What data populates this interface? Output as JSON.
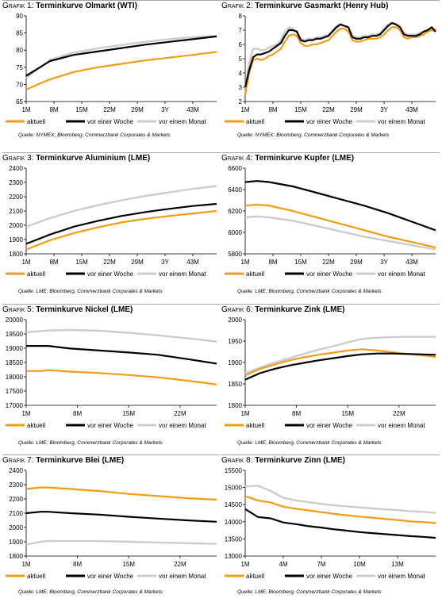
{
  "colors": {
    "aktuell": "#f39c12",
    "woche": "#000000",
    "monat": "#cccccc"
  },
  "chart_data": [
    {
      "type": "line",
      "label": "Grafik 1:",
      "title": "Terminkurve Olmarkt (WTI)",
      "source": "Quelle: NYMEX; Bloomberg, Commerzbank Corporates & Markets",
      "x": [
        0,
        6,
        12,
        18,
        24,
        30,
        36,
        42,
        48
      ],
      "xticks": [
        {
          "v": 0,
          "label": "1M"
        },
        {
          "v": 7,
          "label": "8M"
        },
        {
          "v": 14,
          "label": "15M"
        },
        {
          "v": 21,
          "label": "22M"
        },
        {
          "v": 28,
          "label": "29M"
        },
        {
          "v": 35,
          "label": "3Y"
        },
        {
          "v": 42,
          "label": "43M"
        }
      ],
      "xlim": [
        0,
        48
      ],
      "ylim": [
        65,
        90
      ],
      "yticks": [
        65,
        70,
        75,
        80,
        85,
        90
      ],
      "series": [
        {
          "name": "aktuell",
          "values": [
            68.5,
            71.5,
            73.6,
            75.0,
            76.0,
            77.0,
            77.8,
            78.6,
            79.5
          ]
        },
        {
          "name": "vor einer Woche",
          "values": [
            72.5,
            76.8,
            78.6,
            79.6,
            80.6,
            81.6,
            82.4,
            83.2,
            84.0
          ]
        },
        {
          "name": "vor einem Monat",
          "values": [
            71.8,
            77.2,
            79.3,
            80.5,
            81.5,
            82.4,
            83.2,
            83.8,
            84.2
          ]
        }
      ]
    },
    {
      "type": "line",
      "label": "Grafik 2:",
      "title": "Terminkurve Gasmarkt (Henry Hub)",
      "source": "Quelle: NYMEX; Bloomberg, Commerzbank Corporates & Markets",
      "x": [
        0,
        1,
        2,
        3,
        4,
        5,
        6,
        7,
        8,
        9,
        10,
        11,
        12,
        13,
        14,
        15,
        16,
        17,
        18,
        19,
        20,
        21,
        22,
        23,
        24,
        25,
        26,
        27,
        28,
        29,
        30,
        31,
        32,
        33,
        34,
        35,
        36,
        37,
        38,
        39,
        40,
        41,
        42,
        43,
        44,
        45,
        46,
        47,
        48
      ],
      "xticks": [
        {
          "v": 0,
          "label": "1M"
        },
        {
          "v": 7,
          "label": "8M"
        },
        {
          "v": 14,
          "label": "15M"
        },
        {
          "v": 21,
          "label": "22M"
        },
        {
          "v": 28,
          "label": "29M"
        },
        {
          "v": 35,
          "label": "3Y"
        },
        {
          "v": 42,
          "label": "43M"
        }
      ],
      "xlim": [
        0,
        48
      ],
      "ylim": [
        2,
        8
      ],
      "yticks": [
        2,
        3,
        4,
        5,
        6,
        7,
        8
      ],
      "series": [
        {
          "name": "aktuell",
          "values": [
            2.5,
            4.0,
            4.9,
            5.0,
            4.9,
            5.0,
            5.2,
            5.3,
            5.5,
            5.7,
            6.2,
            6.6,
            6.7,
            6.6,
            6.1,
            5.9,
            5.9,
            6.0,
            6.0,
            6.1,
            6.2,
            6.3,
            6.6,
            6.9,
            7.1,
            7.1,
            6.9,
            6.3,
            6.2,
            6.2,
            6.3,
            6.4,
            6.4,
            6.4,
            6.5,
            6.7,
            7.0,
            7.2,
            7.2,
            7.0,
            6.5,
            6.4,
            6.5,
            6.5,
            6.6,
            6.7,
            6.9,
            7.0,
            6.9
          ]
        },
        {
          "name": "vor einer Woche",
          "values": [
            3.0,
            4.2,
            5.1,
            5.3,
            5.3,
            5.4,
            5.5,
            5.7,
            5.9,
            6.1,
            6.6,
            7.0,
            7.0,
            6.9,
            6.3,
            6.2,
            6.3,
            6.3,
            6.4,
            6.4,
            6.5,
            6.6,
            6.9,
            7.2,
            7.4,
            7.3,
            7.2,
            6.5,
            6.4,
            6.4,
            6.5,
            6.5,
            6.6,
            6.6,
            6.7,
            7.0,
            7.3,
            7.5,
            7.4,
            7.2,
            6.7,
            6.6,
            6.6,
            6.6,
            6.7,
            6.9,
            7.0,
            7.2,
            6.9
          ]
        },
        {
          "name": "vor einem Monat",
          "values": [
            2.9,
            4.7,
            5.7,
            5.7,
            5.6,
            5.6,
            5.8,
            5.9,
            6.0,
            6.3,
            6.9,
            7.2,
            7.1,
            6.9,
            6.4,
            6.3,
            6.4,
            6.4,
            6.5,
            6.5,
            6.6,
            6.7,
            7.0,
            7.3,
            7.4,
            7.3,
            7.2,
            6.6,
            6.5,
            6.5,
            6.6,
            6.6,
            6.7,
            6.7,
            6.8,
            7.1,
            7.4,
            7.5,
            7.4,
            7.3,
            6.8,
            6.7,
            6.7,
            6.7,
            6.8,
            6.9,
            7.0,
            7.1,
            7.0
          ]
        }
      ]
    },
    {
      "type": "line",
      "label": "Grafik 3:",
      "title": "Terminkurve Aluminium (LME)",
      "source": "Quelle: LME; Bloomberg, Commerzbank Corporates & Markets",
      "x": [
        0,
        6,
        12,
        18,
        24,
        30,
        36,
        42,
        48
      ],
      "xticks": [
        {
          "v": 0,
          "label": "1M"
        },
        {
          "v": 7,
          "label": "8M"
        },
        {
          "v": 14,
          "label": "15M"
        },
        {
          "v": 21,
          "label": "22M"
        },
        {
          "v": 28,
          "label": "29M"
        },
        {
          "v": 35,
          "label": "3Y"
        },
        {
          "v": 42,
          "label": "43M"
        }
      ],
      "xlim": [
        0,
        48
      ],
      "ylim": [
        1800,
        2400
      ],
      "yticks": [
        1800,
        1900,
        2000,
        2100,
        2200,
        2300,
        2400
      ],
      "series": [
        {
          "name": "aktuell",
          "values": [
            1830,
            1895,
            1945,
            1985,
            2020,
            2045,
            2065,
            2083,
            2100
          ]
        },
        {
          "name": "vor einer Woche",
          "values": [
            1870,
            1935,
            1990,
            2030,
            2065,
            2092,
            2115,
            2135,
            2150
          ]
        },
        {
          "name": "vor einem Monat",
          "values": [
            1990,
            2050,
            2100,
            2140,
            2175,
            2205,
            2230,
            2255,
            2275
          ]
        }
      ]
    },
    {
      "type": "line",
      "label": "Grafik 4:",
      "title": "Terminkurve Kupfer (LME)",
      "source": "Quelle: LME; Bloomberg, Commerzbank Corporates & Markets",
      "x": [
        0,
        3,
        6,
        12,
        18,
        24,
        30,
        36,
        42,
        48
      ],
      "xticks": [
        {
          "v": 0,
          "label": "1M"
        },
        {
          "v": 7,
          "label": "8M"
        },
        {
          "v": 14,
          "label": "15M"
        },
        {
          "v": 21,
          "label": "22M"
        },
        {
          "v": 28,
          "label": "29M"
        },
        {
          "v": 35,
          "label": "3Y"
        },
        {
          "v": 42,
          "label": "43M"
        }
      ],
      "xlim": [
        0,
        48
      ],
      "ylim": [
        5800,
        6600
      ],
      "yticks": [
        5800,
        6000,
        6200,
        6400,
        6600
      ],
      "series": [
        {
          "name": "aktuell",
          "values": [
            6250,
            6260,
            6250,
            6200,
            6140,
            6080,
            6020,
            5960,
            5910,
            5860
          ]
        },
        {
          "name": "vor einer Woche",
          "values": [
            6470,
            6480,
            6470,
            6430,
            6370,
            6310,
            6250,
            6180,
            6100,
            6020
          ]
        },
        {
          "name": "vor einem Monat",
          "values": [
            6140,
            6150,
            6140,
            6110,
            6060,
            6010,
            5960,
            5920,
            5880,
            5840
          ]
        }
      ]
    },
    {
      "type": "line",
      "label": "Grafik 5:",
      "title": "Terminkurve Nickel (LME)",
      "source": "Quelle: LME; Bloomberg, Commerzbank Corporates & Markets",
      "x": [
        0,
        2,
        3,
        6,
        10,
        14,
        18,
        22,
        26
      ],
      "xticks": [
        {
          "v": 0,
          "label": "1M"
        },
        {
          "v": 7,
          "label": "8M"
        },
        {
          "v": 14,
          "label": "15M"
        },
        {
          "v": 21,
          "label": "22M"
        }
      ],
      "xlim": [
        0,
        26
      ],
      "ylim": [
        17000,
        20000
      ],
      "yticks": [
        17000,
        17500,
        18000,
        18500,
        19000,
        19500,
        20000
      ],
      "series": [
        {
          "name": "aktuell",
          "values": [
            18200,
            18200,
            18230,
            18180,
            18130,
            18060,
            17980,
            17860,
            17730
          ]
        },
        {
          "name": "vor einer Woche",
          "values": [
            19080,
            19080,
            19080,
            18990,
            18920,
            18850,
            18770,
            18620,
            18460
          ]
        },
        {
          "name": "vor einem Monat",
          "values": [
            19560,
            19600,
            19620,
            19640,
            19610,
            19540,
            19450,
            19350,
            19230
          ]
        }
      ]
    },
    {
      "type": "line",
      "label": "Grafik 6:",
      "title": "Terminkurve Zink (LME)",
      "source": "Quelle: LME; Bloomberg, Commerzbank Corporates & Markets",
      "x": [
        0,
        2,
        4,
        6,
        8,
        10,
        12,
        14,
        16,
        18,
        20,
        22,
        24,
        26
      ],
      "xticks": [
        {
          "v": 0,
          "label": "1M"
        },
        {
          "v": 7,
          "label": "8M"
        },
        {
          "v": 14,
          "label": "15M"
        },
        {
          "v": 21,
          "label": "22M"
        }
      ],
      "xlim": [
        0,
        26
      ],
      "ylim": [
        1800,
        2000
      ],
      "yticks": [
        1800,
        1850,
        1900,
        1950,
        2000
      ],
      "series": [
        {
          "name": "aktuell",
          "values": [
            1870,
            1885,
            1895,
            1905,
            1912,
            1918,
            1923,
            1928,
            1931,
            1928,
            1924,
            1920,
            1917,
            1913
          ]
        },
        {
          "name": "vor einer Woche",
          "values": [
            1860,
            1875,
            1885,
            1893,
            1899,
            1905,
            1910,
            1915,
            1919,
            1921,
            1921,
            1920,
            1919,
            1918
          ]
        },
        {
          "name": "vor einem Monat",
          "values": [
            1875,
            1888,
            1900,
            1910,
            1920,
            1930,
            1938,
            1947,
            1955,
            1958,
            1959,
            1960,
            1960,
            1960
          ]
        }
      ]
    },
    {
      "type": "line",
      "label": "Grafik 7:",
      "title": "Terminkurve Blei (LME)",
      "source": "Quelle: LME; Bloomberg, Commerzbank Corporates & Markets",
      "x": [
        0,
        2,
        3,
        6,
        10,
        14,
        18,
        22,
        26
      ],
      "xticks": [
        {
          "v": 0,
          "label": "1M"
        },
        {
          "v": 7,
          "label": "8M"
        },
        {
          "v": 14,
          "label": "15M"
        },
        {
          "v": 21,
          "label": "22M"
        }
      ],
      "xlim": [
        0,
        26
      ],
      "ylim": [
        1800,
        2400
      ],
      "yticks": [
        1800,
        1900,
        2000,
        2100,
        2200,
        2300,
        2400
      ],
      "series": [
        {
          "name": "aktuell",
          "values": [
            2270,
            2280,
            2280,
            2270,
            2255,
            2235,
            2220,
            2205,
            2195
          ]
        },
        {
          "name": "vor einer Woche",
          "values": [
            2100,
            2110,
            2110,
            2100,
            2090,
            2075,
            2062,
            2050,
            2040
          ]
        },
        {
          "name": "vor einem Monat",
          "values": [
            1880,
            1900,
            1905,
            1905,
            1905,
            1900,
            1895,
            1890,
            1885
          ]
        }
      ]
    },
    {
      "type": "line",
      "label": "Grafik 8:",
      "title": "Terminkurve Zinn (LME)",
      "source": "Quelle: LME; Bloomberg, Commerzbank Corporates & Markets",
      "x": [
        0,
        1,
        2,
        3,
        4,
        5,
        6,
        7,
        8,
        9,
        10,
        11,
        12,
        13,
        14,
        15
      ],
      "xticks": [
        {
          "v": 0,
          "label": "1M"
        },
        {
          "v": 3,
          "label": "4M"
        },
        {
          "v": 6,
          "label": "7M"
        },
        {
          "v": 9,
          "label": "10M"
        },
        {
          "v": 12,
          "label": "13M"
        }
      ],
      "xlim": [
        0,
        15
      ],
      "ylim": [
        13000,
        15500
      ],
      "yticks": [
        13000,
        13500,
        14000,
        14500,
        15000,
        15500
      ],
      "series": [
        {
          "name": "aktuell",
          "values": [
            14750,
            14620,
            14560,
            14440,
            14380,
            14330,
            14280,
            14230,
            14190,
            14150,
            14120,
            14080,
            14050,
            14010,
            13990,
            13960
          ]
        },
        {
          "name": "vor einer Woche",
          "values": [
            14370,
            14140,
            14100,
            13980,
            13930,
            13870,
            13830,
            13780,
            13740,
            13700,
            13670,
            13640,
            13610,
            13580,
            13560,
            13530
          ]
        },
        {
          "name": "vor einem Monat",
          "values": [
            15030,
            15050,
            14900,
            14700,
            14620,
            14570,
            14520,
            14480,
            14450,
            14420,
            14390,
            14360,
            14340,
            14310,
            14290,
            14260
          ]
        }
      ]
    }
  ]
}
